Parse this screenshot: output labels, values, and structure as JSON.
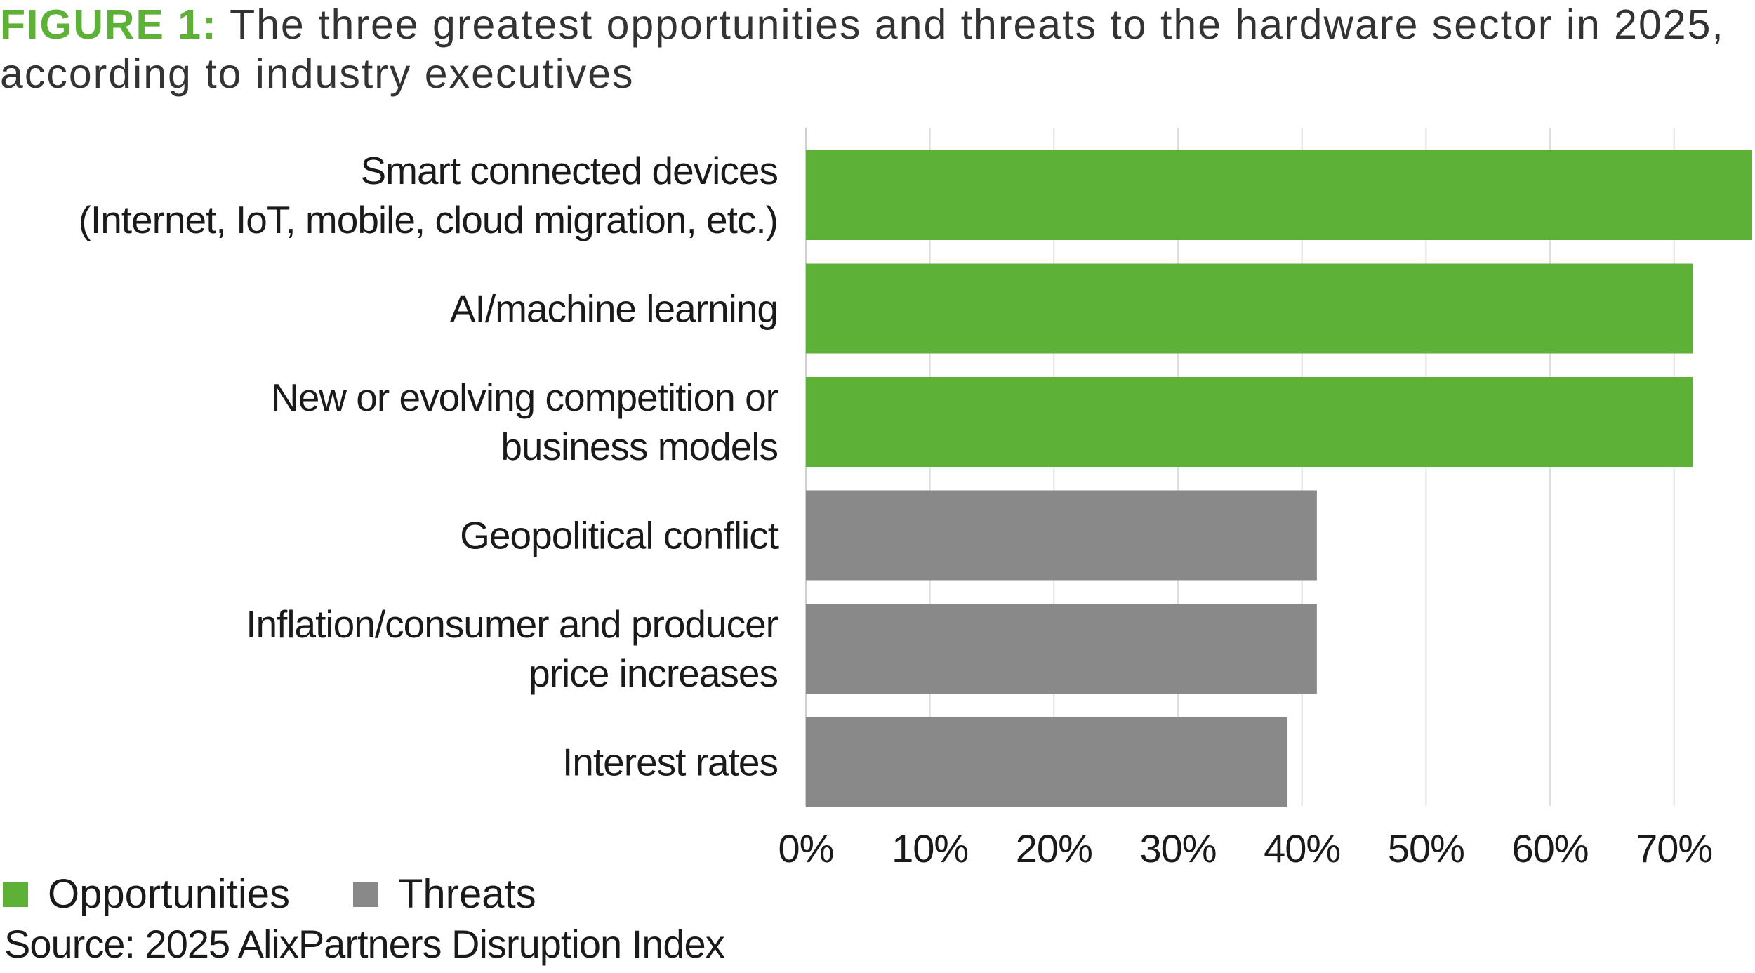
{
  "figure": {
    "label": "FIGURE 1:",
    "title": "The three greatest opportunities and threats to the hardware sector in 2025, according to industry executives"
  },
  "chart_data": {
    "type": "bar",
    "orientation": "horizontal",
    "title": "The three greatest opportunities and threats to the hardware sector in 2025, according to industry executives",
    "categories": [
      [
        "Smart connected devices",
        "(Internet, IoT, mobile, cloud migration, etc.)"
      ],
      [
        "AI/machine learning"
      ],
      [
        "New or evolving competition or",
        "business models"
      ],
      [
        "Geopolitical conflict"
      ],
      [
        "Inflation/consumer and producer",
        "price increases"
      ],
      [
        "Interest rates"
      ]
    ],
    "values": [
      76.3,
      71.5,
      71.5,
      41.2,
      41.2,
      38.8
    ],
    "groups": [
      "Opportunities",
      "Opportunities",
      "Opportunities",
      "Threats",
      "Threats",
      "Threats"
    ],
    "xlim": [
      0,
      76.3
    ],
    "xticks": [
      0,
      10,
      20,
      30,
      40,
      50,
      60,
      70
    ],
    "xtick_labels": [
      "0%",
      "10%",
      "20%",
      "30%",
      "40%",
      "50%",
      "60%",
      "70%"
    ],
    "grid": true,
    "xlabel": "",
    "ylabel": "",
    "legend": {
      "position": "bottom-left",
      "entries": [
        {
          "name": "Opportunities",
          "color": "#5cb136"
        },
        {
          "name": "Threats",
          "color": "#898989"
        }
      ]
    }
  },
  "source": "Source: 2025 AlixPartners Disruption Index",
  "colors": {
    "opportunity": "#5cb136",
    "threat": "#898989",
    "grid": "#dedede",
    "axis": "#cfcfcf",
    "label": "#1a1a1a"
  }
}
